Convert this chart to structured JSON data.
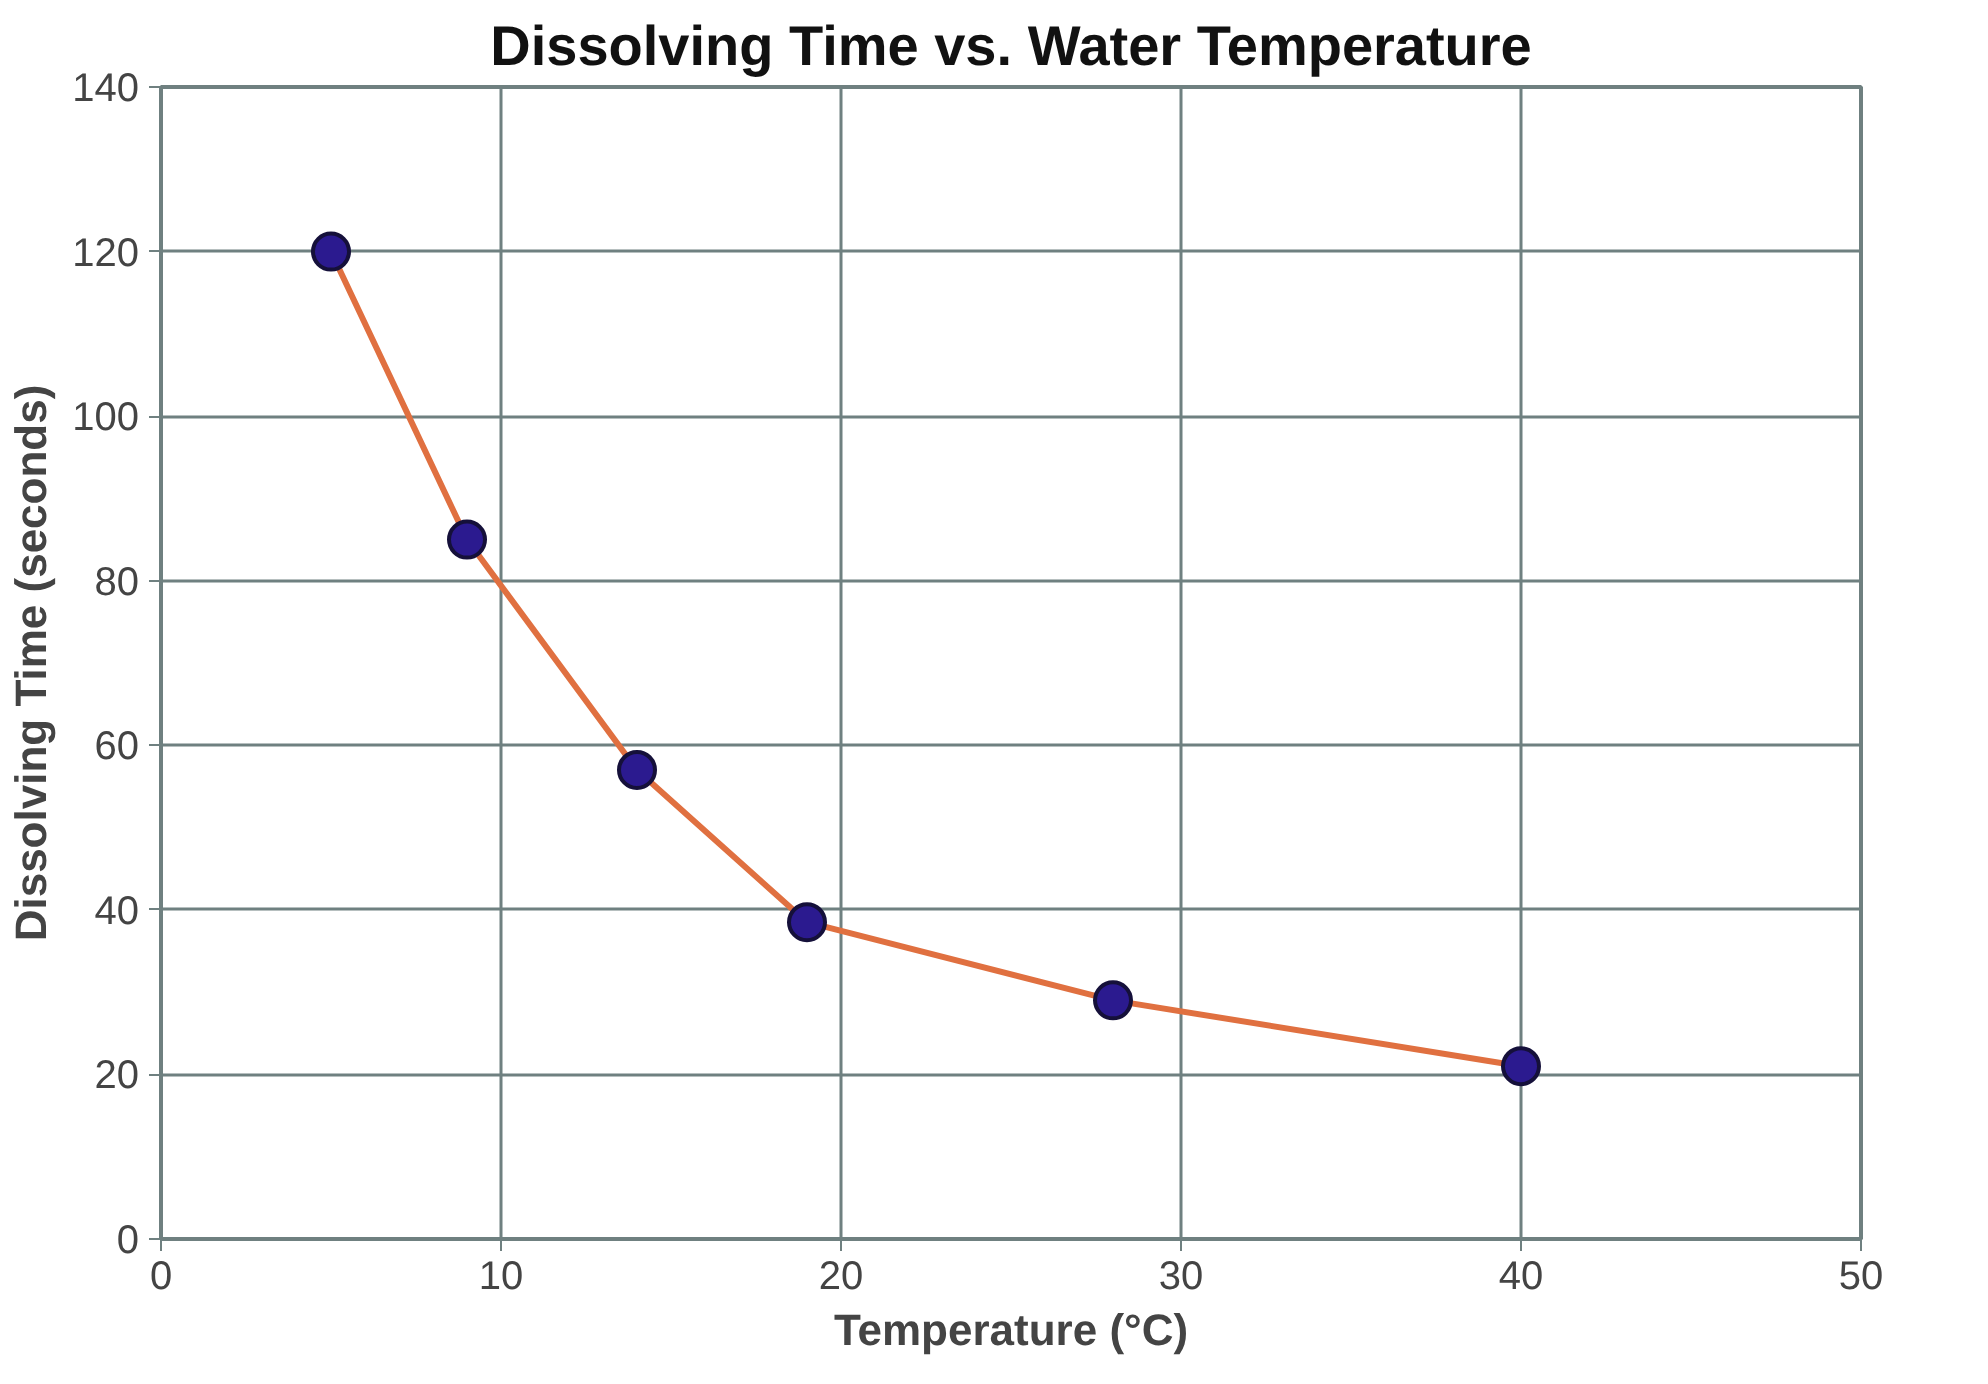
{
  "chart_data": {
    "type": "line",
    "title": "Dissolving Time vs. Water Temperature",
    "xlabel": "Temperature (°C)",
    "ylabel": "Dissolving Time (seconds)",
    "x": [
      5,
      9,
      14,
      19,
      28,
      40
    ],
    "series": [
      {
        "color": "#e07040",
        "values": [
          120,
          85,
          57,
          38.5,
          29,
          21
        ]
      }
    ],
    "xlim": [
      0,
      50
    ],
    "xticks": [
      0,
      10,
      20,
      30,
      40,
      50
    ],
    "ylim": [
      0,
      140
    ],
    "yticks": [
      0,
      20,
      40,
      60,
      80,
      100,
      120,
      140
    ],
    "grid": true,
    "marker": "circle",
    "line_style": "solid"
  }
}
